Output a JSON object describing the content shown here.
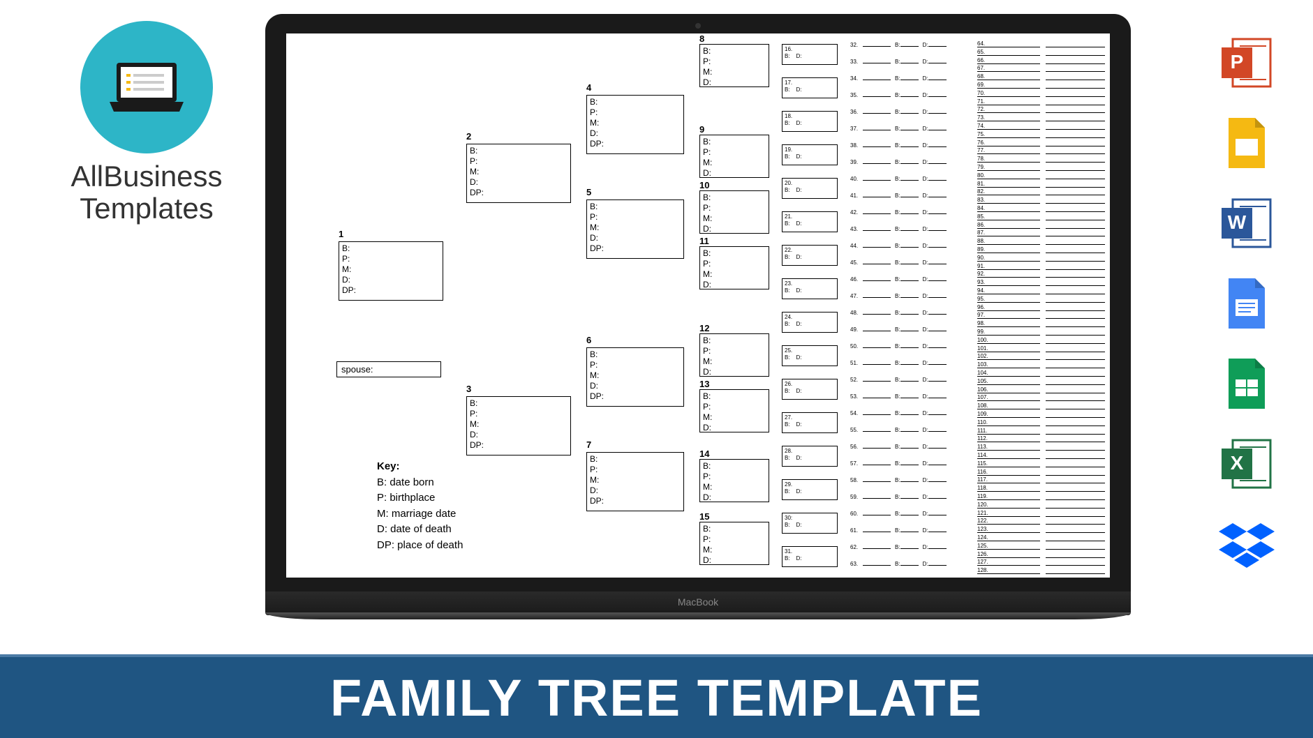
{
  "logo": {
    "line1": "AllBusiness",
    "line2": "Templates"
  },
  "macbook": {
    "label": "MacBook"
  },
  "banner": {
    "title": "FAMILY TREE TEMPLATE",
    "bg": "#1f5582",
    "text_color": "#ffffff"
  },
  "tree": {
    "box_fields_full": [
      "B:",
      "P:",
      "M:",
      "D:",
      "DP:"
    ],
    "box_fields_short": [
      "B:",
      "P:",
      "M:",
      "D:"
    ],
    "spouse_label": "spouse:",
    "gen1": {
      "id": "1"
    },
    "gen2": [
      {
        "id": "2"
      },
      {
        "id": "3"
      }
    ],
    "gen3": [
      {
        "id": "4"
      },
      {
        "id": "5"
      },
      {
        "id": "6"
      },
      {
        "id": "7"
      }
    ],
    "gen4": [
      {
        "id": "8"
      },
      {
        "id": "9"
      },
      {
        "id": "10"
      },
      {
        "id": "11"
      },
      {
        "id": "12"
      },
      {
        "id": "13"
      },
      {
        "id": "14"
      },
      {
        "id": "15"
      }
    ],
    "gen5": [
      {
        "id": "16."
      },
      {
        "id": "17."
      },
      {
        "id": "18."
      },
      {
        "id": "19."
      },
      {
        "id": "20."
      },
      {
        "id": "21."
      },
      {
        "id": "22."
      },
      {
        "id": "23."
      },
      {
        "id": "24."
      },
      {
        "id": "25."
      },
      {
        "id": "26."
      },
      {
        "id": "27."
      },
      {
        "id": "28."
      },
      {
        "id": "29."
      },
      {
        "id": "30:"
      },
      {
        "id": "31."
      }
    ],
    "gen5_fields": [
      "B:",
      "D:"
    ],
    "gen6": [
      {
        "id": "32."
      },
      {
        "id": "33."
      },
      {
        "id": "34."
      },
      {
        "id": "35."
      },
      {
        "id": "36."
      },
      {
        "id": "37."
      },
      {
        "id": "38."
      },
      {
        "id": "39."
      },
      {
        "id": "40."
      },
      {
        "id": "41."
      },
      {
        "id": "42."
      },
      {
        "id": "43."
      },
      {
        "id": "44."
      },
      {
        "id": "45."
      },
      {
        "id": "46."
      },
      {
        "id": "47."
      },
      {
        "id": "48."
      },
      {
        "id": "49."
      },
      {
        "id": "50."
      },
      {
        "id": "51."
      },
      {
        "id": "52."
      },
      {
        "id": "53."
      },
      {
        "id": "54."
      },
      {
        "id": "55."
      },
      {
        "id": "56."
      },
      {
        "id": "57."
      },
      {
        "id": "58."
      },
      {
        "id": "59."
      },
      {
        "id": "60."
      },
      {
        "id": "61."
      },
      {
        "id": "62."
      },
      {
        "id": "63."
      }
    ],
    "gen6_fields": [
      "B:",
      "D:"
    ],
    "gen7_start": 64,
    "gen7_end": 128
  },
  "key": {
    "title": "Key:",
    "items": [
      "B: date born",
      "P: birthplace",
      "M: marriage date",
      "D: date of death",
      "DP: place of death"
    ]
  },
  "formats": [
    {
      "name": "powerpoint",
      "bg": "#d24726",
      "letter": "P"
    },
    {
      "name": "slides",
      "bg": "#f5b912",
      "swatch": "#ffffff"
    },
    {
      "name": "word",
      "bg": "#2b579a",
      "letter": "W"
    },
    {
      "name": "docs",
      "bg": "#4285f4",
      "swatch": "#ffffff"
    },
    {
      "name": "sheets",
      "bg": "#0f9d58",
      "swatch": "#ffffff"
    },
    {
      "name": "excel",
      "bg": "#217346",
      "letter": "X"
    },
    {
      "name": "dropbox",
      "bg": "#0061ff",
      "type": "dropbox"
    }
  ]
}
